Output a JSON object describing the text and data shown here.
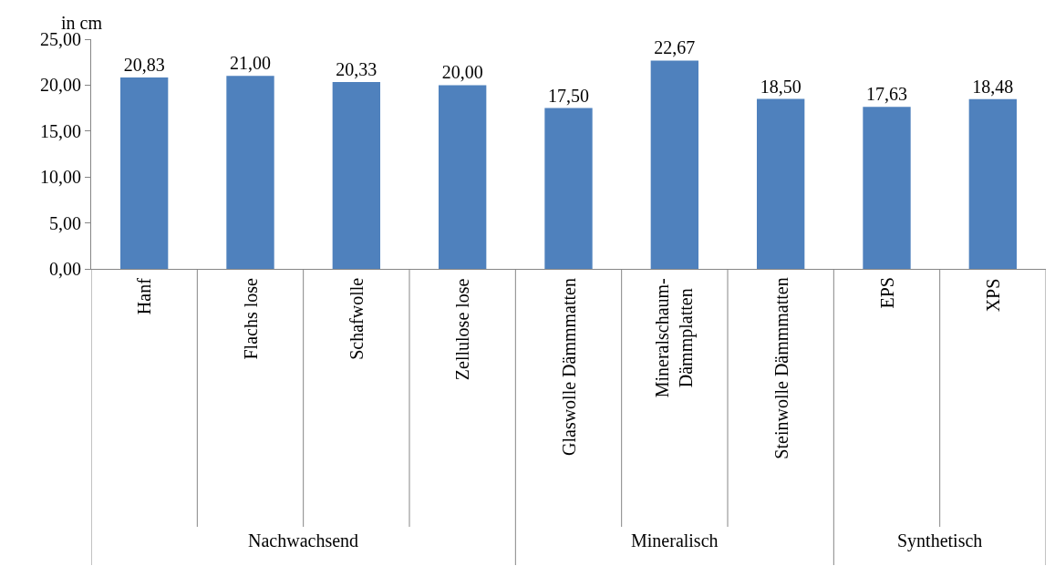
{
  "chart_data": {
    "type": "bar",
    "ylabel": "in cm",
    "categories": [
      "Hanf",
      "Flachs lose",
      "Schafwolle",
      "Zellulose lose",
      "Glaswolle Dämmmatten",
      "Mineralschaum-\nDämmplatten",
      "Steinwolle Dämmmatten",
      "EPS",
      "XPS"
    ],
    "values": [
      20.83,
      21.0,
      20.33,
      20.0,
      17.5,
      22.67,
      18.5,
      17.63,
      18.48
    ],
    "value_labels": [
      "20,83",
      "21,00",
      "20,33",
      "20,00",
      "17,50",
      "22,67",
      "18,50",
      "17,63",
      "18,48"
    ],
    "color": "#4f81bd",
    "ylim": [
      0,
      25
    ],
    "yticks": [
      {
        "value": 0,
        "label": "0,00"
      },
      {
        "value": 5,
        "label": "5,00"
      },
      {
        "value": 10,
        "label": "10,00"
      },
      {
        "value": 15,
        "label": "15,00"
      },
      {
        "value": 20,
        "label": "20,00"
      },
      {
        "value": 25,
        "label": "25,00"
      }
    ],
    "annotations": [
      "Nachwachsend",
      "Mineralisch",
      "Synthetisch"
    ]
  }
}
